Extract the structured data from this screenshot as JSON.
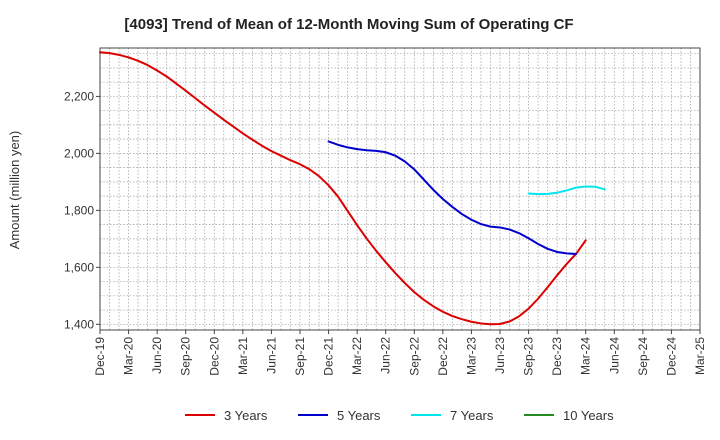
{
  "chart_data": {
    "type": "line",
    "title": "[4093]  Trend of Mean of 12-Month Moving Sum of Operating CF",
    "xlabel": "",
    "ylabel": "Amount (million yen)",
    "ylim": [
      1380,
      2370
    ],
    "yticks": [
      1400,
      1600,
      1800,
      2000,
      2200
    ],
    "ytick_labels": [
      "1,400",
      "1,600",
      "1,800",
      "2,000",
      "2,200"
    ],
    "xticks": [
      "Dec-19",
      "Mar-20",
      "Jun-20",
      "Sep-20",
      "Dec-20",
      "Mar-21",
      "Jun-21",
      "Sep-21",
      "Dec-21",
      "Mar-22",
      "Jun-22",
      "Sep-22",
      "Dec-22",
      "Mar-23",
      "Jun-23",
      "Sep-23",
      "Dec-23",
      "Mar-24",
      "Jun-24",
      "Sep-24",
      "Dec-24",
      "Mar-25"
    ],
    "grid": true,
    "legend": "bottom",
    "series": [
      {
        "name": "3 Years",
        "color": "#dd0000",
        "start_index": 0,
        "values": [
          2355,
          2352,
          2346,
          2337,
          2325,
          2310,
          2291,
          2270,
          2245,
          2220,
          2194,
          2168,
          2143,
          2118,
          2094,
          2070,
          2048,
          2027,
          2008,
          1992,
          1976,
          1962,
          1944,
          1920,
          1888,
          1848,
          1798,
          1748,
          1701,
          1658,
          1618,
          1580,
          1545,
          1513,
          1486,
          1463,
          1444,
          1429,
          1418,
          1409,
          1403,
          1400,
          1401,
          1410,
          1428,
          1455,
          1490,
          1530,
          1572,
          1612,
          1648,
          1695
        ]
      },
      {
        "name": "5 Years",
        "color": "#0000cc",
        "start_index": 24,
        "values": [
          2042,
          2030,
          2021,
          2015,
          2011,
          2009,
          2004,
          1992,
          1972,
          1944,
          1908,
          1872,
          1840,
          1812,
          1787,
          1767,
          1752,
          1743,
          1740,
          1733,
          1720,
          1702,
          1682,
          1665,
          1654,
          1649,
          1647
        ]
      },
      {
        "name": "7 Years",
        "color": "#00e5ee",
        "start_index": 45,
        "values": [
          1859,
          1857,
          1858,
          1862,
          1870,
          1880,
          1884,
          1883,
          1874
        ]
      },
      {
        "name": "10 Years",
        "color": "#228b22",
        "start_index": 0,
        "values": []
      }
    ]
  }
}
